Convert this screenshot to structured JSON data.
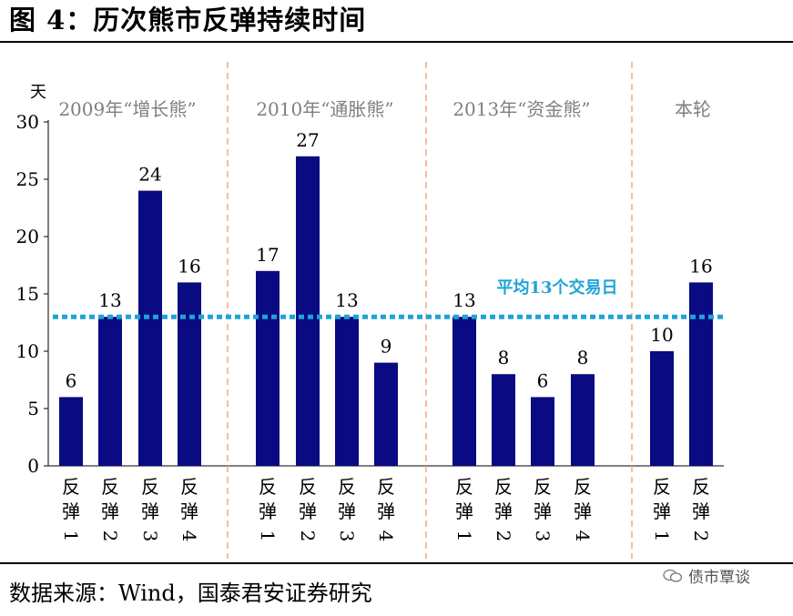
{
  "figure": {
    "title": "图 4：历次熊市反弹持续时间",
    "source": "数据来源：Wind，国泰君安证券研究",
    "watermark": "债市覃谈"
  },
  "chart_data": {
    "type": "bar",
    "ylabel": "天",
    "ylim": [
      0,
      30
    ],
    "yticks": [
      0,
      5,
      10,
      15,
      20,
      25,
      30
    ],
    "bar_color": "#0a0a82",
    "average_line": {
      "value": 13,
      "label": "平均13个交易日",
      "color": "#1fa3d6"
    },
    "groups": [
      {
        "label": "2009年“增长熊”",
        "categories": [
          "反弹1",
          "反弹2",
          "反弹3",
          "反弹4"
        ],
        "values": [
          6,
          13,
          24,
          16
        ]
      },
      {
        "label": "2010年“通胀熊”",
        "categories": [
          "反弹1",
          "反弹2",
          "反弹3",
          "反弹4"
        ],
        "values": [
          17,
          27,
          13,
          9
        ]
      },
      {
        "label": "2013年“资金熊”",
        "categories": [
          "反弹1",
          "反弹2",
          "反弹3",
          "反弹4"
        ],
        "values": [
          13,
          8,
          6,
          8
        ]
      },
      {
        "label": "本轮",
        "categories": [
          "反弹1",
          "反弹2"
        ],
        "values": [
          10,
          16
        ]
      }
    ],
    "separator_color": "#f4a87c"
  }
}
